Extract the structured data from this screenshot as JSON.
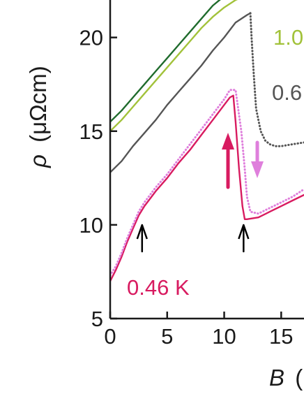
{
  "chart_data": {
    "type": "line",
    "xlabel_symbol": "B",
    "xlabel_unit": "(",
    "ylabel_symbol": "ρ",
    "ylabel_unit": "(μΩcm)",
    "xlim": [
      0,
      17
    ],
    "ylim": [
      5,
      22
    ],
    "xticks": [
      0,
      5,
      10,
      15
    ],
    "yticks": [
      5,
      10,
      15,
      20
    ],
    "xtick_labels": [
      "0",
      "5",
      "10",
      "15"
    ],
    "ytick_labels": [
      "5",
      "10",
      "15",
      "20"
    ],
    "grid": false,
    "series": [
      {
        "name": "0.46 K",
        "color": "#d81b60",
        "style": "solid",
        "x": [
          0,
          0.5,
          1,
          1.5,
          2,
          2.5,
          3,
          4,
          5,
          6,
          7,
          8,
          9,
          10,
          10.5,
          10.8,
          11,
          11.3,
          11.6,
          11.8,
          12,
          13,
          14,
          15,
          16,
          17
        ],
        "y": [
          7.0,
          7.6,
          8.3,
          9.1,
          9.8,
          10.5,
          11.0,
          11.8,
          12.5,
          13.3,
          14.0,
          14.8,
          15.6,
          16.4,
          16.8,
          16.9,
          15.5,
          13.0,
          11.0,
          10.3,
          10.3,
          10.4,
          10.7,
          11.0,
          11.3,
          11.6
        ]
      },
      {
        "name": "",
        "color": "#df7fdc",
        "style": "dotted",
        "x": [
          0,
          0.5,
          1,
          1.5,
          2,
          2.5,
          3,
          4,
          5,
          6,
          7,
          8,
          9,
          10,
          10.5,
          11,
          11.5,
          11.8,
          12,
          12.3,
          13,
          14,
          15,
          16,
          17
        ],
        "y": [
          7.3,
          7.8,
          8.5,
          9.3,
          10.0,
          10.7,
          11.2,
          12.0,
          12.7,
          13.5,
          14.3,
          15.1,
          15.9,
          16.7,
          17.2,
          17.2,
          15.0,
          13.0,
          11.5,
          10.7,
          10.6,
          10.9,
          11.2,
          11.5,
          11.9
        ]
      },
      {
        "name": "0.6",
        "color": "#555555",
        "style": "solid",
        "x": [
          0,
          1,
          2,
          3,
          4,
          5,
          6,
          7,
          8,
          9,
          10,
          11,
          12,
          12.3
        ],
        "y": [
          12.8,
          13.4,
          14.2,
          14.9,
          15.6,
          16.4,
          17.1,
          17.8,
          18.5,
          19.3,
          20.0,
          20.8,
          21.2,
          21.3
        ]
      },
      {
        "name": "",
        "color": "#555555",
        "style": "dotted",
        "x": [
          12.3,
          12.4,
          12.6,
          12.8,
          13.2,
          13.6,
          14.0,
          14.5,
          15,
          16,
          17
        ],
        "y": [
          21.3,
          20.0,
          18.0,
          16.2,
          15.0,
          14.5,
          14.3,
          14.2,
          14.2,
          14.3,
          14.4
        ]
      },
      {
        "name": "1.0",
        "color": "#a2c23a",
        "style": "solid",
        "x": [
          0,
          1,
          2,
          3,
          4,
          5,
          6,
          7,
          8,
          9,
          10,
          11,
          11.8
        ],
        "y": [
          15.0,
          15.6,
          16.3,
          17.0,
          17.7,
          18.4,
          19.1,
          19.8,
          20.5,
          21.1,
          21.6,
          22.0,
          22.2
        ]
      },
      {
        "name": "",
        "color": "#1f6b2c",
        "style": "solid",
        "x": [
          0,
          1,
          2,
          3,
          4,
          5,
          6,
          7,
          8,
          9,
          10,
          11
        ],
        "y": [
          15.5,
          16.1,
          16.8,
          17.5,
          18.2,
          18.9,
          19.6,
          20.3,
          21.0,
          21.7,
          22.2,
          22.6
        ]
      }
    ],
    "annotations": {
      "up_arrow_color": "#d81b60",
      "down_arrow_color": "#df7fdc",
      "marker_arrow_color": "#000000",
      "marker_arrows_x": [
        2.8,
        11.7
      ]
    }
  }
}
